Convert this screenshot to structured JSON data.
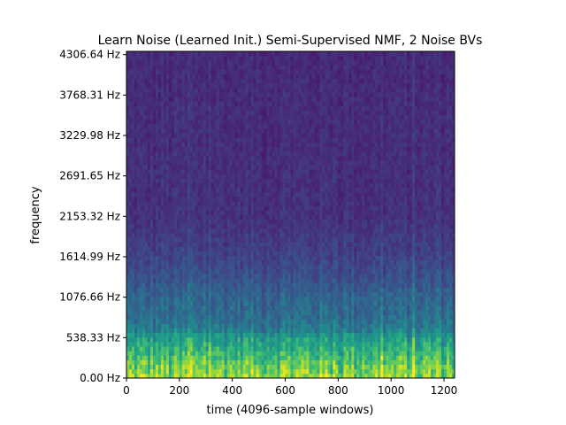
{
  "chart_data": {
    "type": "heatmap",
    "title": "Learn Noise (Learned Init.) Semi-Supervised NMF, 2 Noise BVs",
    "xlabel": "time (4096-sample windows)",
    "ylabel": "frequency",
    "xlim": [
      0,
      1240
    ],
    "ylim": [
      0,
      4350
    ],
    "x_ticks": [
      0,
      200,
      400,
      600,
      800,
      1000,
      1200
    ],
    "x_tick_labels": [
      "0",
      "200",
      "400",
      "600",
      "800",
      "1000",
      "1200"
    ],
    "y_ticks": [
      0,
      538.33,
      1076.66,
      1614.99,
      2153.32,
      2691.65,
      3229.98,
      3768.31,
      4306.64
    ],
    "y_tick_labels": [
      "0.00 Hz",
      "538.33 Hz",
      "1076.66 Hz",
      "1614.99 Hz",
      "2153.32 Hz",
      "2691.65 Hz",
      "3229.98 Hz",
      "3768.31 Hz",
      "4306.64 Hz"
    ],
    "colormap": "viridis",
    "grid": false,
    "legend": "none",
    "intensity_profile_by_frequency": {
      "frequency_hz": [
        0,
        200,
        400,
        538.33,
        650,
        800,
        1076.66,
        1300,
        1614.99,
        2153.32,
        4306.64
      ],
      "relative_magnitude": [
        0.85,
        0.75,
        0.62,
        0.55,
        0.42,
        0.36,
        0.32,
        0.26,
        0.2,
        0.14,
        0.12
      ]
    }
  }
}
